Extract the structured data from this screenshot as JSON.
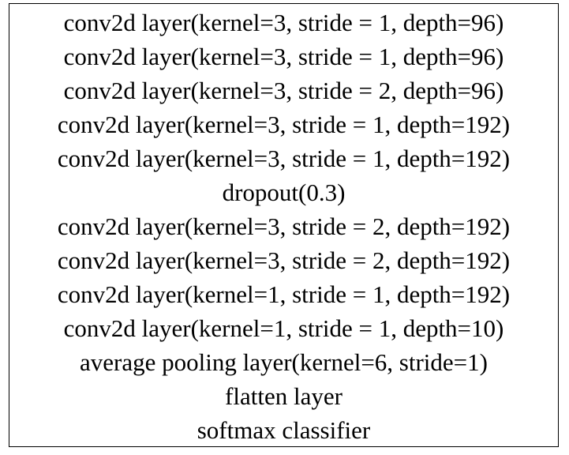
{
  "layers": [
    "conv2d layer(kernel=3, stride = 1, depth=96)",
    "conv2d layer(kernel=3, stride = 1, depth=96)",
    "conv2d layer(kernel=3, stride = 2, depth=96)",
    "conv2d layer(kernel=3, stride = 1, depth=192)",
    "conv2d layer(kernel=3, stride = 1, depth=192)",
    "dropout(0.3)",
    "conv2d layer(kernel=3, stride = 2, depth=192)",
    "conv2d layer(kernel=3, stride = 2, depth=192)",
    "conv2d layer(kernel=1, stride = 1, depth=192)",
    "conv2d layer(kernel=1, stride = 1, depth=10)",
    "average pooling layer(kernel=6, stride=1)",
    "flatten layer",
    "softmax classifier"
  ]
}
